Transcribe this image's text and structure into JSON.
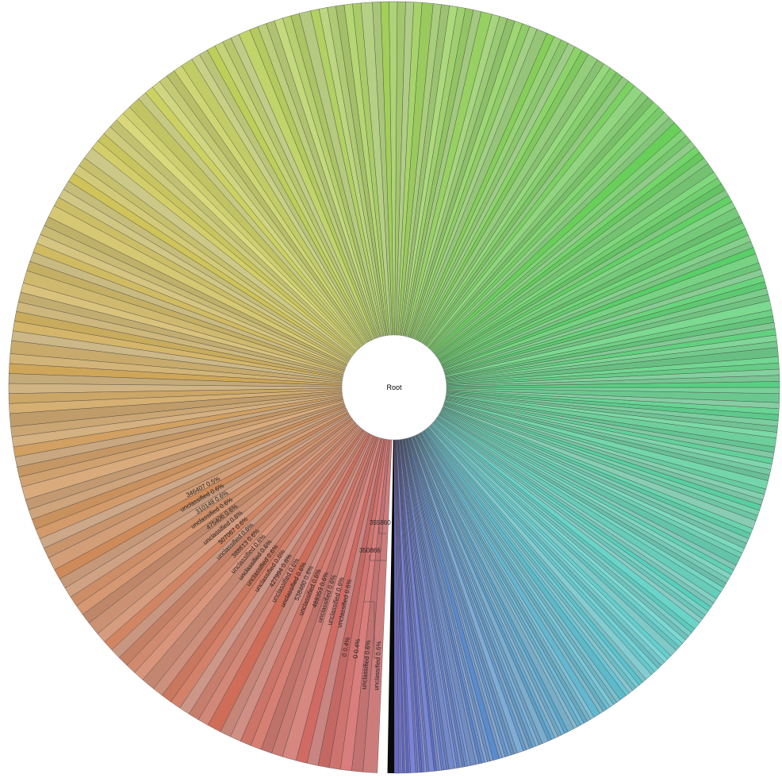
{
  "chart_data": {
    "type": "pie",
    "subtype": "sunburst",
    "center_label": "Root",
    "segment_count": 330,
    "hue_start_deg": 240,
    "hue_end_deg": 0,
    "dark_slice_color": "#0a0a0a",
    "labeled_slices": [
      {
        "name": "346407",
        "value": "0.5%"
      },
      {
        "name": "unclassified",
        "value": "0.6%"
      },
      {
        "name": "310148",
        "value": "0.6%"
      },
      {
        "name": "unclassified",
        "value": "0.6%"
      },
      {
        "name": "475406",
        "value": "0.6%"
      },
      {
        "name": "unclassified",
        "value": "0.6%"
      },
      {
        "name": "507067",
        "value": "0.6%"
      },
      {
        "name": "unclassified",
        "value": "0.6%"
      },
      {
        "name": "388613",
        "value": "0.6%"
      },
      {
        "name": "unclassified",
        "value": "0.6%"
      },
      {
        "name": "unclassified",
        "value": "0.6%"
      },
      {
        "name": "unclassified",
        "value": "0.6%"
      },
      {
        "name": "unclassified",
        "value": "0.6%"
      },
      {
        "name": "427994",
        "value": "0.6%"
      },
      {
        "name": "unclassified",
        "value": "0.6%"
      },
      {
        "name": "unclassified",
        "value": "0.6%"
      },
      {
        "name": "538460",
        "value": "0.6%"
      },
      {
        "name": "unclassified",
        "value": "0.6%"
      },
      {
        "name": "489353",
        "value": "0.6%"
      },
      {
        "name": "unclassified",
        "value": "0.6%"
      },
      {
        "name": "unclassified",
        "value": "0.6%"
      },
      {
        "name": "unclassified",
        "value": "0.6%"
      },
      {
        "name": "0",
        "value": "0.4%"
      },
      {
        "name": "0",
        "value": "0.4%"
      },
      {
        "name": "unclassified",
        "value": "0.6%"
      },
      {
        "name": "unclassified",
        "value": "0.6%"
      }
    ],
    "callouts": [
      "355860",
      "350866"
    ]
  }
}
